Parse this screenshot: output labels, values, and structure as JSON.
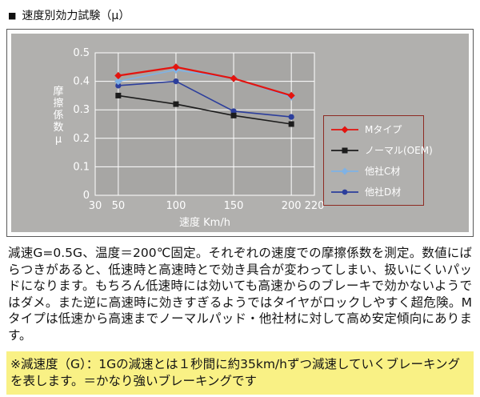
{
  "header": {
    "bullet": "■",
    "title": "速度別効力試験（μ）"
  },
  "chart_data": {
    "type": "line",
    "x": [
      50,
      100,
      150,
      200
    ],
    "xlabel": "速度 Km/h",
    "ylabel": "摩擦係数μ",
    "xticks": [
      30,
      50,
      100,
      150,
      200,
      220
    ],
    "yticks": [
      0,
      0.1,
      0.2,
      0.3,
      0.4,
      0.5
    ],
    "xlim": [
      30,
      220
    ],
    "ylim": [
      0,
      0.5
    ],
    "grid": true,
    "legend_position": "right",
    "series": [
      {
        "name": "Mタイプ",
        "color": "#e3140f",
        "marker": "diamond",
        "values": [
          0.42,
          0.45,
          0.41,
          0.35
        ]
      },
      {
        "name": "ノーマル(OEM)",
        "color": "#1c1c1c",
        "marker": "square",
        "values": [
          0.35,
          0.32,
          0.28,
          0.25
        ]
      },
      {
        "name": "他社C材",
        "color": "#7fb2e5",
        "marker": "diamond",
        "values": [
          0.4,
          0.44,
          0.41,
          0.345
        ]
      },
      {
        "name": "他社D材",
        "color": "#2c3e9c",
        "marker": "circle",
        "values": [
          0.385,
          0.4,
          0.295,
          0.275
        ]
      }
    ]
  },
  "description": "減速G=0.5G、温度＝200℃固定。それぞれの速度での摩擦係数を測定。数値にばらつきがあると、低速時と高速時とで効き具合が変わってしまい、扱いにくいパッドになります。もちろん低速時には効いても高速からのブレーキで効かないようではダメ。また逆に高速時に効きすぎるようではタイヤがロックしやすく超危険。Mタイプは低速から高速までノーマルパッド・他社材に対して高め安定傾向にあります。",
  "note": "※減速度（G）：1Gの減速とは１秒間に約35km/hずつ減速していくブレーキングを表します。＝かなり強いブレーキングです"
}
